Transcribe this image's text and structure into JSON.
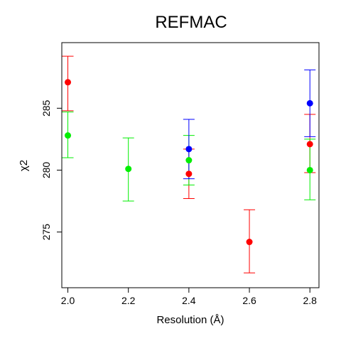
{
  "chart_data": {
    "type": "scatter",
    "title": "REFMAC",
    "xlabel": "Resolution (Å)",
    "ylabel": "χ2",
    "xlim": [
      1.98,
      2.83
    ],
    "ylim": [
      270.5,
      290.3
    ],
    "x_ticks": [
      2.0,
      2.2,
      2.4,
      2.6,
      2.8
    ],
    "x_tick_labels": [
      "2.0",
      "2.2",
      "2.4",
      "2.6",
      "2.8"
    ],
    "y_ticks": [
      275,
      280,
      285
    ],
    "y_tick_labels": [
      "275",
      "280",
      "285"
    ],
    "grid": false,
    "legend": "none",
    "error_bars": true,
    "series": [
      {
        "color": "#ff0000",
        "points": [
          {
            "x": 2.0,
            "y": 287.1,
            "low": 284.8,
            "high": 289.2
          },
          {
            "x": 2.4,
            "y": 279.7,
            "low": 277.7,
            "high": 281.7
          },
          {
            "x": 2.6,
            "y": 274.2,
            "low": 271.7,
            "high": 276.8
          },
          {
            "x": 2.8,
            "y": 282.1,
            "low": 279.8,
            "high": 284.5
          }
        ]
      },
      {
        "color": "#00ee00",
        "points": [
          {
            "x": 2.0,
            "y": 282.8,
            "low": 281.0,
            "high": 284.7
          },
          {
            "x": 2.2,
            "y": 280.1,
            "low": 277.5,
            "high": 282.6
          },
          {
            "x": 2.4,
            "y": 280.8,
            "low": 278.8,
            "high": 282.8
          },
          {
            "x": 2.8,
            "y": 280.0,
            "low": 277.6,
            "high": 282.5
          }
        ]
      },
      {
        "color": "#0000ff",
        "points": [
          {
            "x": 2.4,
            "y": 281.7,
            "low": 279.3,
            "high": 284.1
          },
          {
            "x": 2.8,
            "y": 285.4,
            "low": 282.7,
            "high": 288.1
          }
        ]
      }
    ]
  }
}
